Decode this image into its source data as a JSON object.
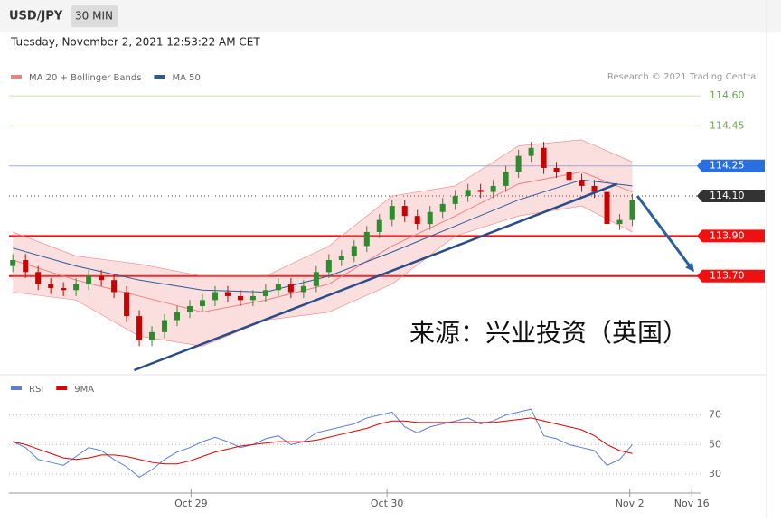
{
  "header": {
    "symbol": "USD/JPY",
    "interval": "30 MIN",
    "timestamp": "Tuesday, November 2, 2021 12:53:22 AM CET",
    "credit": "Research © 2021 Trading Central"
  },
  "chart_data": [
    {
      "type": "candlestick",
      "annotation": "来源：兴业投资（英国）",
      "xlim": [
        -0.3,
        54.4
      ],
      "ylim": [
        113.23,
        114.65
      ],
      "up_color": "#2e8b2e",
      "down_color": "#cc0000",
      "candles": {
        "open": [
          113.75,
          113.78,
          113.72,
          113.66,
          113.64,
          113.63,
          113.66,
          113.7,
          113.68,
          113.62,
          113.5,
          113.38,
          113.42,
          113.48,
          113.52,
          113.55,
          113.58,
          113.62,
          113.6,
          113.58,
          113.6,
          113.63,
          113.66,
          113.62,
          113.65,
          113.72,
          113.78,
          113.8,
          113.85,
          113.92,
          113.98,
          114.05,
          114.0,
          113.96,
          114.02,
          114.06,
          114.1,
          114.13,
          114.12,
          114.15,
          114.22,
          114.3,
          114.34,
          114.24,
          114.22,
          114.18,
          114.15,
          114.12,
          113.96,
          113.98
        ],
        "high": [
          113.81,
          113.81,
          113.75,
          113.69,
          113.67,
          113.69,
          113.73,
          113.73,
          113.71,
          113.65,
          113.53,
          113.45,
          113.51,
          113.55,
          113.58,
          113.61,
          113.65,
          113.65,
          113.63,
          113.63,
          113.66,
          113.69,
          113.69,
          113.68,
          113.75,
          113.81,
          113.83,
          113.88,
          113.95,
          114.01,
          114.08,
          114.08,
          114.03,
          114.05,
          114.09,
          114.13,
          114.16,
          114.16,
          114.18,
          114.25,
          114.33,
          114.37,
          114.37,
          114.27,
          114.25,
          114.21,
          114.18,
          114.15,
          114.01,
          114.11
        ],
        "low": [
          113.72,
          113.69,
          113.63,
          113.61,
          113.6,
          113.6,
          113.63,
          113.65,
          113.59,
          113.47,
          113.35,
          113.35,
          113.39,
          113.45,
          113.49,
          113.52,
          113.55,
          113.57,
          113.55,
          113.55,
          113.57,
          113.6,
          113.59,
          113.59,
          113.62,
          113.69,
          113.75,
          113.77,
          113.82,
          113.89,
          113.95,
          113.97,
          113.93,
          113.93,
          113.99,
          114.03,
          114.07,
          114.09,
          114.09,
          114.12,
          114.19,
          114.27,
          114.21,
          114.19,
          114.15,
          114.12,
          114.09,
          113.93,
          113.93,
          113.95
        ],
        "close": [
          113.78,
          113.72,
          113.66,
          113.64,
          113.63,
          113.66,
          113.7,
          113.68,
          113.62,
          113.5,
          113.38,
          113.42,
          113.48,
          113.52,
          113.55,
          113.58,
          113.62,
          113.6,
          113.58,
          113.6,
          113.63,
          113.66,
          113.62,
          113.65,
          113.72,
          113.78,
          113.8,
          113.85,
          113.92,
          113.98,
          114.05,
          114.0,
          113.96,
          114.02,
          114.06,
          114.1,
          114.13,
          114.12,
          114.15,
          114.22,
          114.3,
          114.34,
          114.24,
          114.22,
          114.18,
          114.15,
          114.12,
          113.96,
          113.98,
          114.08
        ]
      },
      "overlays": [
        {
          "name": "MA 20 + Bollinger Bands",
          "color": "#f08080",
          "x": [
            0,
            5,
            10,
            15,
            20,
            25,
            30,
            35,
            40,
            45,
            49
          ],
          "upper": [
            113.92,
            113.8,
            113.76,
            113.7,
            113.7,
            113.85,
            114.1,
            114.15,
            114.35,
            114.38,
            114.27
          ],
          "middle": [
            113.78,
            113.68,
            113.6,
            113.52,
            113.58,
            113.66,
            113.85,
            114.0,
            114.16,
            114.22,
            114.12
          ],
          "lower": [
            113.62,
            113.58,
            113.4,
            113.35,
            113.48,
            113.52,
            113.66,
            113.9,
            114.0,
            114.05,
            113.92
          ]
        },
        {
          "name": "MA 50",
          "color": "#2a5a9a",
          "x": [
            0,
            5,
            10,
            15,
            20,
            25,
            30,
            35,
            40,
            45,
            49
          ],
          "values": [
            113.84,
            113.75,
            113.68,
            113.63,
            113.62,
            113.7,
            113.82,
            113.95,
            114.08,
            114.18,
            114.15
          ]
        }
      ],
      "levels": [
        {
          "value": 114.6,
          "label": "114.60",
          "color": "#6aa84f",
          "line": "#c5e0b4",
          "box": false
        },
        {
          "value": 114.45,
          "label": "114.45",
          "color": "#6aa84f",
          "line": "#c5e0b4",
          "box": false
        },
        {
          "value": 114.25,
          "label": "114.25",
          "color": "#2a6fe0",
          "line": "#8fb0ee",
          "box": true
        },
        {
          "value": 114.1,
          "label": "114.10",
          "color": "#333333",
          "line": "#333333",
          "box": true,
          "dotted": true
        },
        {
          "value": 113.9,
          "label": "113.90",
          "color": "#ee1111",
          "line": "#ee1111",
          "box": true
        },
        {
          "value": 113.7,
          "label": "113.70",
          "color": "#ee1111",
          "line": "#ee1111",
          "box": true
        }
      ],
      "trendline": {
        "x": [
          9.6,
          47.8
        ],
        "y": [
          113.23,
          114.16
        ],
        "color": "#2a4d8a"
      },
      "arrow": {
        "x": [
          49.4,
          53.9
        ],
        "y": [
          114.1,
          113.72
        ],
        "color": "#2a6099"
      }
    },
    {
      "type": "line",
      "xlim": [
        -0.3,
        54.4
      ],
      "ylim": [
        24,
        82
      ],
      "yticks": [
        30,
        50,
        70
      ],
      "xticks": [
        {
          "value": 14.1,
          "label": "Oct 29"
        },
        {
          "value": 29.6,
          "label": "Oct 30"
        },
        {
          "value": 48.8,
          "label": "Nov 2"
        },
        {
          "value": 53.7,
          "label": "Nov 16"
        }
      ],
      "series": [
        {
          "name": "RSI",
          "color": "#5b7fd6",
          "values": [
            52,
            48,
            40,
            38,
            36,
            42,
            48,
            46,
            40,
            35,
            28,
            33,
            40,
            45,
            48,
            52,
            55,
            52,
            48,
            50,
            54,
            56,
            50,
            52,
            58,
            60,
            62,
            64,
            68,
            70,
            72,
            62,
            58,
            62,
            64,
            66,
            68,
            64,
            66,
            70,
            72,
            74,
            56,
            54,
            50,
            48,
            46,
            36,
            40,
            50
          ]
        },
        {
          "name": "9MA",
          "color": "#e00000",
          "values": [
            52,
            50,
            47,
            44,
            41,
            40,
            41,
            43,
            43,
            42,
            40,
            38,
            37,
            37,
            39,
            42,
            45,
            47,
            49,
            50,
            51,
            52,
            52,
            52,
            53,
            55,
            57,
            59,
            61,
            64,
            66,
            66,
            65,
            65,
            65,
            65,
            65,
            65,
            65,
            66,
            67,
            68,
            66,
            64,
            62,
            60,
            56,
            50,
            46,
            44
          ]
        }
      ]
    }
  ]
}
